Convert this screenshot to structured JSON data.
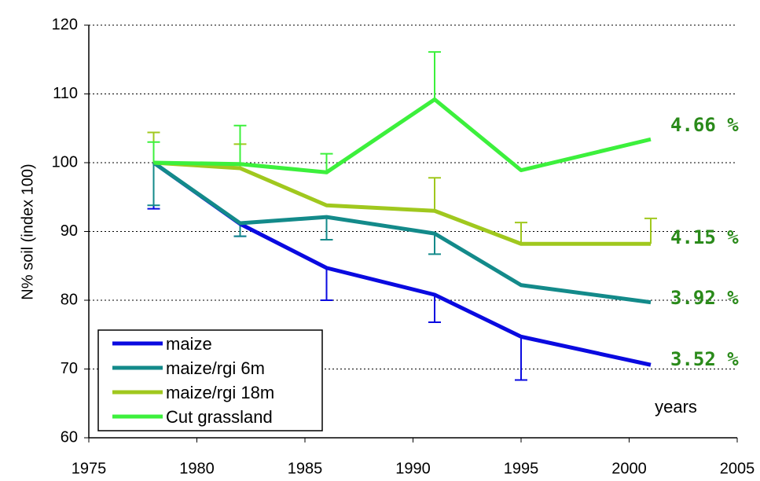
{
  "chart_data": {
    "type": "line",
    "y_label": "N% soil (index 100)",
    "x_annotation": "years",
    "x": [
      1978,
      1982,
      1986,
      1991,
      1995,
      2001
    ],
    "xlim": [
      1975,
      2005
    ],
    "xticks": [
      1975,
      1980,
      1985,
      1990,
      1995,
      2000,
      2005
    ],
    "ylim": [
      60,
      120
    ],
    "yticks": [
      60,
      70,
      80,
      90,
      100,
      110,
      120
    ],
    "grid": true,
    "legend": "lower left",
    "series": [
      {
        "name": "maize",
        "color": "#0a0ae0",
        "values": [
          100,
          91.1,
          84.7,
          80.8,
          74.7,
          70.6
        ],
        "errors": [
          6.7,
          1.8,
          4.7,
          4.0,
          6.3,
          null
        ],
        "error_direction": "down",
        "end_label": "3.52 %"
      },
      {
        "name": "maize/rgi 6m",
        "color": "#138a8a",
        "values": [
          100,
          91.2,
          92.1,
          89.7,
          82.2,
          79.7
        ],
        "errors": [
          6.2,
          1.9,
          3.3,
          3.0,
          null,
          null
        ],
        "error_direction": "down",
        "end_label": "3.92 %"
      },
      {
        "name": "maize/rgi 18m",
        "color": "#a0c81e",
        "values": [
          100,
          99.2,
          93.8,
          93.0,
          88.2,
          88.2
        ],
        "errors": [
          4.4,
          3.5,
          null,
          4.8,
          3.1,
          3.7
        ],
        "error_direction": "up",
        "end_label": "4.15 %"
      },
      {
        "name": "Cut grassland",
        "color": "#3cf03c",
        "values": [
          100,
          99.8,
          98.6,
          109.2,
          98.9,
          103.4
        ],
        "errors": [
          3.0,
          5.6,
          2.7,
          6.9,
          null,
          null
        ],
        "error_direction": "up",
        "end_label": "4.66 %"
      }
    ]
  }
}
